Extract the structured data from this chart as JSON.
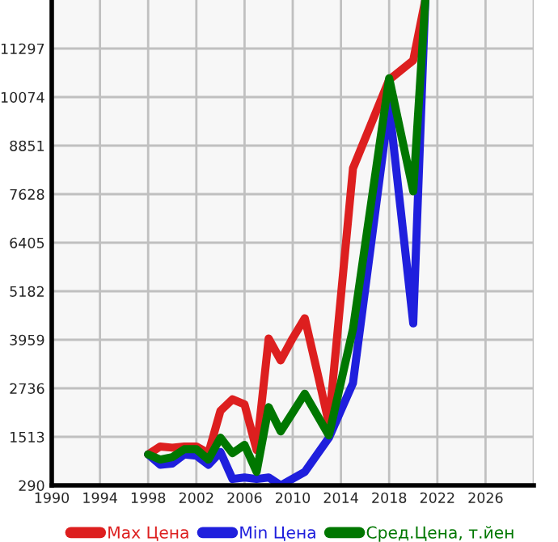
{
  "chart_data": {
    "type": "line",
    "xlim": [
      1990,
      2030
    ],
    "ylim": [
      290,
      12520
    ],
    "xticks": [
      1990,
      1994,
      1998,
      2002,
      2006,
      2010,
      2014,
      2018,
      2022,
      2026,
      {
        "value": 2030,
        "label": null
      }
    ],
    "yticks": [
      290,
      1513,
      2736,
      3959,
      5182,
      6405,
      7628,
      8851,
      10074,
      11297
    ],
    "grid": true,
    "legend": "bottom",
    "marker": "none",
    "line_style": "solid",
    "series": [
      {
        "name": "Max Цена",
        "color": "#dd1f1f",
        "x": [
          1998,
          1999,
          2000,
          2001,
          2002,
          2003,
          2004,
          2005,
          2006,
          2007,
          2008,
          2009,
          2010,
          2011,
          2012,
          2013,
          2015,
          2018,
          2020,
          2021
        ],
        "values": [
          1070,
          1270,
          1240,
          1270,
          1270,
          1100,
          2170,
          2460,
          2330,
          1180,
          3990,
          3440,
          4000,
          4500,
          3190,
          1850,
          8280,
          10510,
          11000,
          12520
        ]
      },
      {
        "name": "Min Цена",
        "color": "#1f1fdd",
        "x": [
          1998,
          1999,
          2000,
          2001,
          2002,
          2003,
          2004,
          2005,
          2006,
          2007,
          2008,
          2009,
          2011,
          2013,
          2015,
          2018,
          2020,
          2021
        ],
        "values": [
          1070,
          810,
          840,
          1070,
          1040,
          810,
          1130,
          450,
          490,
          450,
          490,
          290,
          630,
          1490,
          2870,
          9870,
          4370,
          12520
        ]
      },
      {
        "name": "Сред.Цена, т.йен",
        "color": "#007700",
        "x": [
          1998,
          1999,
          2000,
          2001,
          2002,
          2003,
          2004,
          2005,
          2006,
          2007,
          2008,
          2009,
          2011,
          2013,
          2015,
          2018,
          2020,
          2021
        ],
        "values": [
          1070,
          940,
          1000,
          1200,
          1200,
          940,
          1490,
          1100,
          1310,
          630,
          2260,
          1650,
          2600,
          1550,
          4230,
          10550,
          7700,
          12520
        ]
      }
    ]
  }
}
